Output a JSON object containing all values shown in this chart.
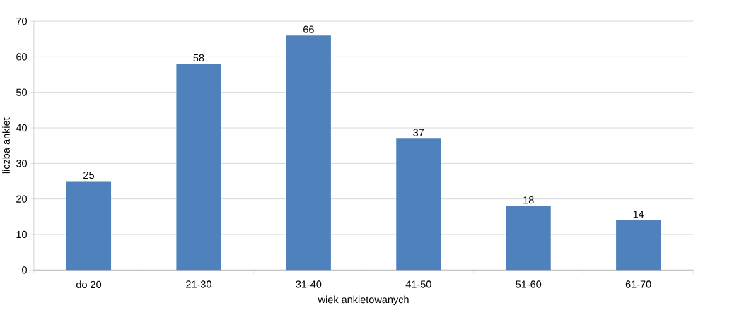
{
  "chart_data": {
    "type": "bar",
    "xlabel": "wiek ankietowanych",
    "ylabel": "liczba ankiet",
    "categories": [
      "do 20",
      "21-30",
      "31-40",
      "41-50",
      "51-60",
      "61-70"
    ],
    "values": [
      25,
      58,
      66,
      37,
      18,
      14
    ],
    "color": "#4f81bd",
    "ylim": [
      0,
      70
    ],
    "yticks": [
      0,
      10,
      20,
      30,
      40,
      50,
      60,
      70
    ],
    "grid": "y",
    "data_labels": true
  }
}
